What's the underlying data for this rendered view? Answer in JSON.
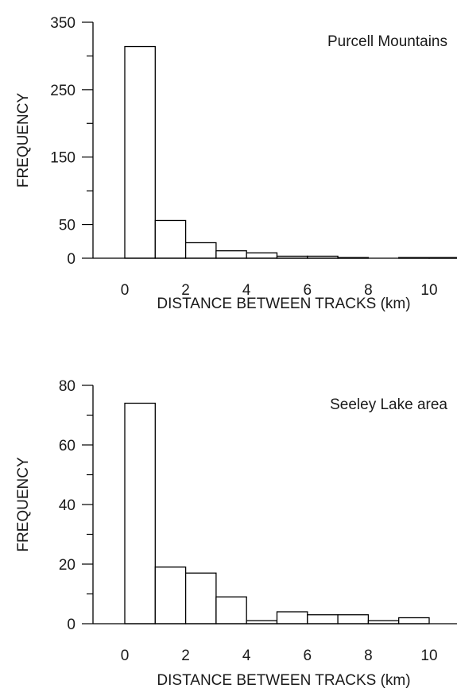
{
  "chart_data": [
    {
      "type": "bar",
      "annotation": "Purcell Mountains",
      "xlabel": "DISTANCE BETWEEN TRACKS (km)",
      "ylabel": "FREQUENCY",
      "ylim": [
        0,
        350
      ],
      "xlim": [
        -1,
        10.8
      ],
      "x_ticks": [
        0,
        2,
        4,
        6,
        8,
        10
      ],
      "x_tick_labels": [
        "0",
        "2",
        "4",
        "6",
        "8",
        "10"
      ],
      "y_ticks": [
        0,
        50,
        100,
        150,
        200,
        250,
        300,
        350
      ],
      "y_tick_labels": [
        "0",
        "50",
        "",
        "150",
        "",
        "250",
        "",
        "350"
      ],
      "bin_width": 1,
      "bins": [
        0,
        1,
        2,
        3,
        4,
        5,
        6,
        7,
        8,
        9,
        10
      ],
      "values": [
        314,
        56,
        23,
        11,
        8,
        3,
        3,
        1,
        0,
        1,
        1
      ],
      "grid": false
    },
    {
      "type": "bar",
      "annotation": "Seeley Lake area",
      "xlabel": "DISTANCE BETWEEN TRACKS (km)",
      "ylabel": "FREQUENCY",
      "ylim": [
        0,
        80
      ],
      "xlim": [
        -1,
        10.8
      ],
      "x_ticks": [
        0,
        2,
        4,
        6,
        8,
        10
      ],
      "x_tick_labels": [
        "0",
        "2",
        "4",
        "6",
        "8",
        "10"
      ],
      "y_ticks": [
        0,
        10,
        20,
        30,
        40,
        50,
        60,
        70,
        80
      ],
      "y_tick_labels": [
        "0",
        "",
        "20",
        "",
        "40",
        "",
        "60",
        "",
        "80"
      ],
      "bin_width": 1,
      "bins": [
        0,
        1,
        2,
        3,
        4,
        5,
        6,
        7,
        8,
        9
      ],
      "values": [
        74,
        19,
        17,
        9,
        1,
        4,
        3,
        3,
        1,
        2
      ],
      "grid": false
    }
  ]
}
